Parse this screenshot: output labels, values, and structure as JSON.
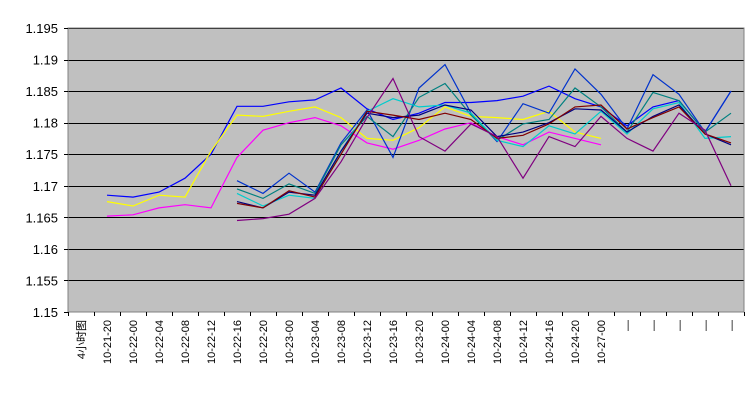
{
  "chart_data": {
    "type": "line",
    "title": "",
    "xlabel": "",
    "ylabel": "",
    "ylim": [
      1.15,
      1.195
    ],
    "yticks": [
      1.15,
      1.155,
      1.16,
      1.165,
      1.17,
      1.175,
      1.18,
      1.185,
      1.19,
      1.195
    ],
    "ytick_labels": [
      "1.15",
      "1.155",
      "1.16",
      "1.165",
      "1.17",
      "1.175",
      "1.18",
      "1.185",
      "1.19",
      "1.195"
    ],
    "grid": true,
    "legend": "none",
    "categories": [
      "4小时图",
      "10-21-20",
      "10-22-00",
      "10-22-04",
      "10-22-08",
      "10-22-12",
      "10-22-16",
      "10-22-20",
      "10-23-00",
      "10-23-04",
      "10-23-08",
      "10-23-12",
      "10-23-16",
      "10-23-20",
      "10-24-00",
      "10-24-04",
      "10-24-08",
      "10-24-12",
      "10-24-16",
      "10-24-20",
      "10-27-00",
      "—",
      "—",
      "—",
      "—",
      "—"
    ],
    "series": [
      {
        "color": "#0000ff",
        "values": [
          null,
          1.1685,
          1.1682,
          1.169,
          1.1712,
          1.175,
          1.1826,
          1.1826,
          1.1833,
          1.1836,
          1.1855,
          1.1822,
          1.1805,
          1.1815,
          1.1832,
          1.1832,
          1.1835,
          1.1842,
          1.1858,
          1.1838,
          1.1825,
          1.1795,
          1.1825,
          1.1835,
          1.1785,
          1.185
        ]
      },
      {
        "color": "#ffff00",
        "values": [
          null,
          1.1675,
          1.1668,
          1.1685,
          1.1682,
          1.1755,
          1.1812,
          1.181,
          1.1818,
          1.1825,
          1.1808,
          1.1775,
          1.1772,
          1.1792,
          1.1825,
          1.181,
          1.1808,
          1.1805,
          1.1818,
          1.1785,
          1.1775,
          null,
          null,
          null,
          null,
          null
        ]
      },
      {
        "color": "#ff00ff",
        "values": [
          null,
          1.1652,
          1.1654,
          1.1665,
          1.167,
          1.1665,
          1.1745,
          1.1788,
          1.18,
          1.1808,
          1.1795,
          1.1768,
          1.1758,
          1.1772,
          1.179,
          1.18,
          1.1778,
          1.1765,
          1.1785,
          1.1775,
          1.1765,
          null,
          null,
          null,
          null,
          null
        ]
      },
      {
        "color": "#0033cc",
        "values": [
          null,
          null,
          null,
          null,
          null,
          null,
          1.1708,
          1.1688,
          1.172,
          1.169,
          1.1768,
          1.182,
          1.1745,
          1.1855,
          1.1892,
          1.1815,
          1.177,
          1.183,
          1.1815,
          1.1885,
          1.1845,
          1.179,
          1.1876,
          1.1845,
          1.1785,
          1.185
        ]
      },
      {
        "color": "#008080",
        "values": [
          null,
          null,
          null,
          null,
          null,
          null,
          1.1695,
          1.168,
          1.1703,
          1.1688,
          1.1765,
          1.181,
          1.1778,
          1.184,
          1.1862,
          1.1812,
          1.1772,
          1.1798,
          1.1805,
          1.1855,
          1.1825,
          1.1785,
          1.1848,
          1.1835,
          1.1785,
          1.1815
        ]
      },
      {
        "color": "#00cccc",
        "values": [
          null,
          null,
          null,
          null,
          null,
          null,
          1.1688,
          1.1668,
          1.1685,
          1.168,
          1.1755,
          1.1818,
          1.1838,
          1.1825,
          1.1828,
          1.1815,
          1.1772,
          1.1762,
          1.1795,
          1.1782,
          1.1818,
          1.1782,
          1.1822,
          1.1832,
          1.1775,
          1.1778
        ]
      },
      {
        "color": "#000080",
        "values": [
          null,
          null,
          null,
          null,
          null,
          null,
          1.1675,
          1.1665,
          1.169,
          1.1685,
          1.1755,
          1.1815,
          1.1808,
          1.1812,
          1.1828,
          1.182,
          1.1778,
          1.1785,
          1.18,
          1.1822,
          1.182,
          1.1785,
          1.181,
          1.1828,
          1.1782,
          1.1765
        ]
      },
      {
        "color": "#800000",
        "values": [
          null,
          null,
          null,
          null,
          null,
          null,
          1.1672,
          1.1665,
          1.1692,
          1.1682,
          1.175,
          1.1818,
          1.1812,
          1.1805,
          1.1815,
          1.1805,
          1.1775,
          1.178,
          1.1798,
          1.1825,
          1.1828,
          1.179,
          1.1808,
          1.1825,
          1.1782,
          1.1768
        ]
      },
      {
        "color": "#800080",
        "values": [
          null,
          null,
          null,
          null,
          null,
          null,
          1.1645,
          1.1648,
          1.1655,
          1.168,
          1.1738,
          1.1808,
          1.187,
          1.1778,
          1.1755,
          1.1798,
          1.1778,
          1.1712,
          1.1778,
          1.1762,
          1.181,
          1.1775,
          1.1755,
          1.1815,
          1.1788,
          1.17
        ]
      }
    ]
  }
}
